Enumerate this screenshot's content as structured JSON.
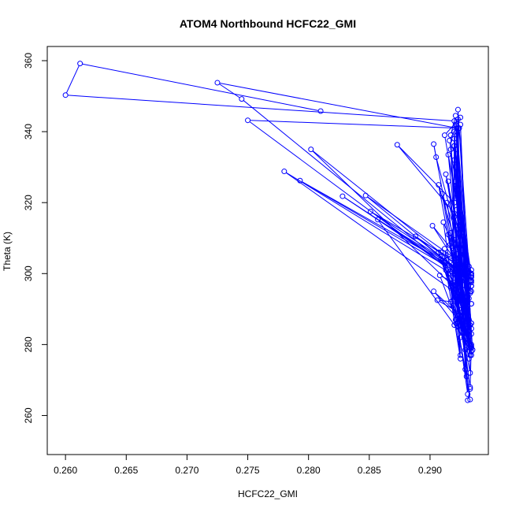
{
  "chart_data": {
    "type": "line",
    "title": "ATOM4 Northbound HCFC22_GMI",
    "xlabel": "HCFC22_GMI",
    "ylabel": "Theta (K)",
    "xlim": [
      0.2585,
      0.2948
    ],
    "ylim": [
      249,
      364
    ],
    "x_ticks": [
      0.26,
      0.265,
      0.27,
      0.275,
      0.28,
      0.285,
      0.29
    ],
    "x_tick_labels": [
      "0.260",
      "0.265",
      "0.270",
      "0.275",
      "0.280",
      "0.285",
      "0.290"
    ],
    "y_ticks": [
      260,
      280,
      300,
      320,
      340,
      360
    ],
    "y_tick_labels": [
      "260",
      "280",
      "300",
      "320",
      "340",
      "360"
    ],
    "grid": false,
    "legend": "none",
    "series": [
      {
        "color": "#0000ff",
        "marker": "open-circle",
        "x": [
          0.281,
          0.2612,
          0.26,
          0.292,
          0.2925,
          0.2912,
          0.2932,
          0.2921,
          0.2917,
          0.2925,
          0.2933,
          0.2922,
          0.2916,
          0.2933,
          0.292,
          0.2926,
          0.2917,
          0.2924,
          0.2923,
          0.2935,
          0.292,
          0.2929,
          0.2934,
          0.2921,
          0.2934,
          0.2903,
          0.2905,
          0.2931,
          0.2913,
          0.2934,
          0.2921,
          0.2933,
          0.2907,
          0.2933,
          0.2921,
          0.293,
          0.291,
          0.2932,
          0.2924,
          0.292,
          0.2873,
          0.2925,
          0.2923,
          0.2922,
          0.2916,
          0.2933,
          0.292,
          0.2928,
          0.2911,
          0.2931,
          0.2923,
          0.2919,
          0.2931,
          0.2917,
          0.2934,
          0.292,
          0.2925,
          0.2912,
          0.2932,
          0.2919,
          0.292,
          0.2932,
          0.2922,
          0.2909,
          0.2934,
          0.2922,
          0.293,
          0.2913,
          0.2933,
          0.292,
          0.2925,
          0.2908,
          0.2934,
          0.2919,
          0.2932,
          0.2921,
          0.293,
          0.2903,
          0.2933,
          0.2921,
          0.2925,
          0.2917,
          0.2934,
          0.2919,
          0.292,
          0.2931,
          0.2921,
          0.2929,
          0.2906,
          0.2934,
          0.2922,
          0.2931,
          0.292,
          0.2932,
          0.2921,
          0.2931,
          0.2915,
          0.2934,
          0.2922,
          0.2929,
          0.2917,
          0.2933,
          0.2925,
          0.2932,
          0.2922,
          0.2928,
          0.2915,
          0.2934,
          0.2914,
          0.2933,
          0.2909,
          0.2933,
          0.2921,
          0.2932,
          0.2922,
          0.293,
          0.2915,
          0.2934,
          0.2918,
          0.2933,
          0.292,
          0.2925,
          0.2912,
          0.2934,
          0.292,
          0.2933,
          0.2917,
          0.293,
          0.292,
          0.2934,
          0.2888,
          0.2934,
          0.2902,
          0.2934,
          0.2745,
          0.2725,
          0.2922,
          0.275,
          0.2934,
          0.278,
          0.2934,
          0.2802,
          0.2934,
          0.2793,
          0.2934,
          0.2828,
          0.2934,
          0.2847,
          0.2934,
          0.2851,
          0.2934,
          0.2857,
          0.2934,
          0.2907,
          0.2934,
          0.2929,
          0.2934,
          0.2933,
          0.2931
        ],
        "y": [
          345.8,
          359.2,
          350.3,
          343.0,
          344.0,
          339.0,
          300.5,
          344.5,
          339.0,
          282.0,
          280.0,
          341.5,
          337.5,
          298.0,
          336.0,
          289.0,
          335.0,
          291.0,
          346.2,
          278.5,
          332.0,
          273.0,
          299.5,
          330.0,
          279.5,
          336.5,
          332.8,
          300.0,
          328.0,
          286.0,
          326.0,
          277.0,
          325.0,
          294.5,
          324.5,
          282.0,
          322.5,
          302.0,
          341.0,
          320.0,
          336.3,
          315.0,
          343.5,
          318.0,
          308.0,
          279.0,
          316.0,
          300.0,
          314.5,
          266.0,
          313.5,
          302.5,
          290.0,
          311.5,
          300.0,
          309.5,
          277.0,
          307.0,
          287.0,
          306.5,
          338.0,
          283.5,
          305.5,
          304.0,
          284.5,
          302.5,
          291.5,
          301.0,
          279.0,
          300.0,
          284.0,
          299.5,
          295.0,
          297.5,
          276.0,
          296.5,
          284.5,
          295.0,
          285.5,
          294.0,
          302.0,
          292.0,
          279.0,
          291.0,
          340.0,
          290.0,
          287.0,
          288.0,
          292.5,
          291.5,
          286.0,
          292.0,
          285.5,
          280.0,
          342.0,
          280.5,
          311.0,
          283.0,
          340.0,
          278.5,
          300.0,
          272.0,
          342.0,
          287.0,
          341.0,
          282.0,
          326.0,
          277.0,
          320.0,
          279.5,
          306.0,
          295.0,
          335.0,
          293.0,
          325.0,
          281.0,
          333.5,
          299.5,
          300.5,
          268.0,
          300.0,
          276.0,
          303.5,
          286.0,
          300.5,
          264.5,
          296.0,
          271.0,
          336.0,
          298.0,
          310.5,
          300.0,
          313.5,
          296.5,
          349.2,
          353.8,
          341.0,
          343.2,
          296.5,
          328.8,
          291.5,
          335.0,
          299.0,
          326.2,
          298.0,
          321.8,
          297.5,
          322.0,
          301.0,
          317.5,
          299.0,
          315.2,
          279.0,
          306.0,
          278.0,
          285.0,
          280.0,
          267.5,
          264.3
        ]
      }
    ]
  }
}
